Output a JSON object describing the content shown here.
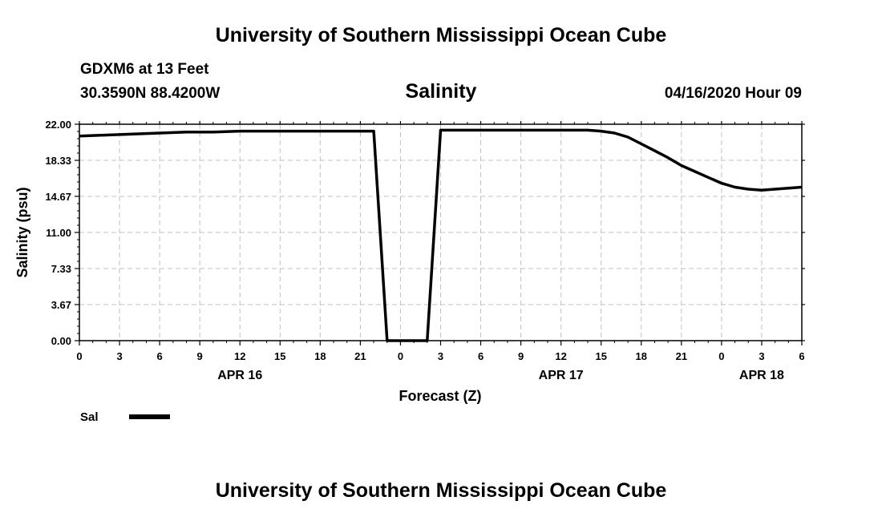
{
  "header": {
    "title_top": "University of Southern Mississippi Ocean Cube",
    "title_bottom": "University of Southern Mississippi Ocean Cube",
    "station": "GDXM6 at 13 Feet",
    "coords": "30.3590N 88.4200W",
    "datetime": "04/16/2020 Hour 09"
  },
  "colors": {
    "line": "#000000",
    "grid": "#c0c0c0",
    "axis": "#000000"
  },
  "chart_data": {
    "type": "line",
    "title": "Salinity",
    "xlabel": "Forecast (Z)",
    "ylabel": "Salinity (psu)",
    "ylim": [
      0,
      22
    ],
    "xlim": [
      0,
      54
    ],
    "grid": true,
    "y_ticks": [
      0,
      3.67,
      7.33,
      11,
      14.67,
      18.33,
      22
    ],
    "y_tick_labels": [
      "0.00",
      "3.67",
      "7.33",
      "11.00",
      "14.67",
      "18.33",
      "22.00"
    ],
    "x_ticks": [
      0,
      3,
      6,
      9,
      12,
      15,
      18,
      21,
      24,
      27,
      30,
      33,
      36,
      39,
      42,
      45,
      48,
      51,
      54
    ],
    "x_tick_labels": [
      "0",
      "3",
      "6",
      "9",
      "12",
      "15",
      "18",
      "21",
      "0",
      "3",
      "6",
      "9",
      "12",
      "15",
      "18",
      "21",
      "0",
      "3",
      "6"
    ],
    "date_labels": [
      {
        "text": "APR 16",
        "x": 12
      },
      {
        "text": "APR 17",
        "x": 36
      },
      {
        "text": "APR 18",
        "x": 51
      }
    ],
    "legend": [
      {
        "name": "Sal",
        "position": "bottom-left"
      }
    ],
    "series": [
      {
        "name": "Sal",
        "x": [
          0,
          2,
          4,
          6,
          8,
          10,
          12,
          14,
          16,
          18,
          20,
          22,
          23,
          24,
          25,
          26,
          27,
          28,
          30,
          32,
          34,
          36,
          37,
          38,
          39,
          40,
          41,
          42,
          43,
          44,
          45,
          46,
          47,
          48,
          49,
          50,
          51,
          52,
          53,
          54
        ],
        "values": [
          20.8,
          20.9,
          21.0,
          21.1,
          21.2,
          21.2,
          21.3,
          21.3,
          21.3,
          21.3,
          21.3,
          21.3,
          0,
          0,
          0,
          0,
          21.4,
          21.4,
          21.4,
          21.4,
          21.4,
          21.4,
          21.4,
          21.4,
          21.3,
          21.1,
          20.7,
          20.0,
          19.3,
          18.6,
          17.8,
          17.2,
          16.6,
          16.0,
          15.6,
          15.4,
          15.3,
          15.4,
          15.5,
          15.6
        ]
      }
    ]
  }
}
